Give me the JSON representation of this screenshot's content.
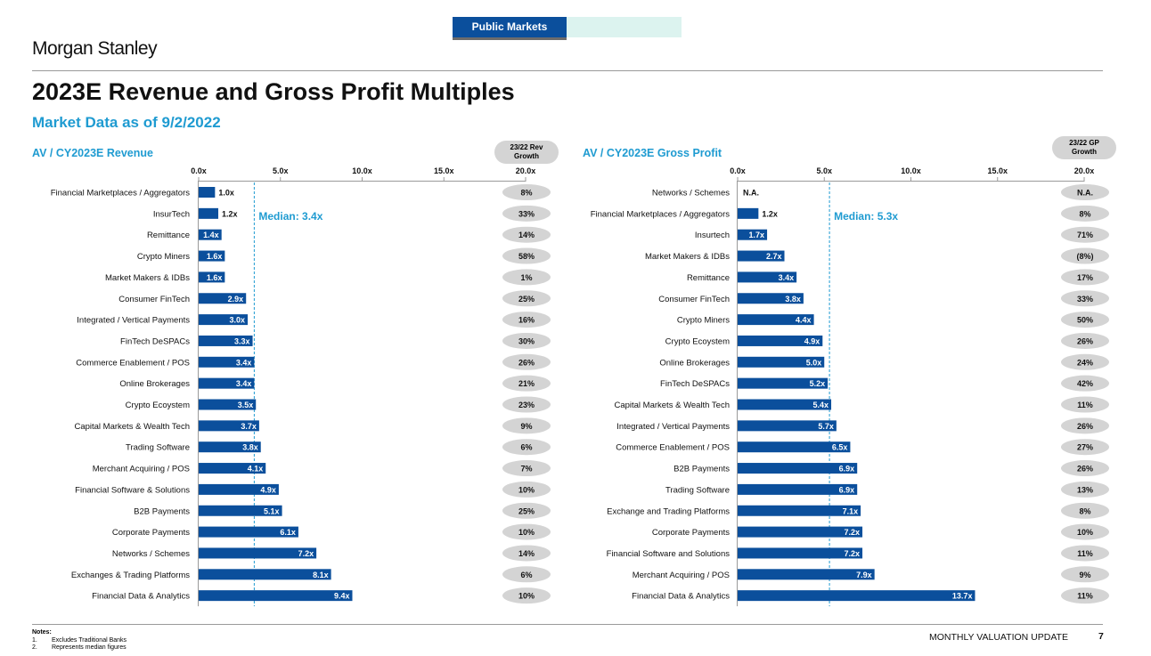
{
  "header": {
    "tab_label": "Public Markets",
    "logo": "Morgan Stanley",
    "title": "2023E Revenue and Gross Profit Multiples",
    "subtitle": "Market Data as of 9/2/2022"
  },
  "colors": {
    "bar": "#0b4f9c",
    "accent": "#1f9bd1",
    "pill": "#d4d4d4",
    "tab_inactive": "#dcf3ef"
  },
  "chart_data": [
    {
      "type": "bar",
      "orientation": "horizontal",
      "title": "AV / CY2023E Revenue",
      "growth_header": "23/22 Rev\nGrowth",
      "xlim": [
        0,
        20
      ],
      "ticks": [
        "0.0x",
        "5.0x",
        "10.0x",
        "15.0x",
        "20.0x"
      ],
      "tick_values": [
        0,
        5,
        10,
        15,
        20
      ],
      "median": 3.4,
      "median_label": "Median: 3.4x",
      "categories": [
        "Financial Marketplaces / Aggregators",
        "InsurTech",
        "Remittance",
        "Crypto Miners",
        "Market Makers & IDBs",
        "Consumer FinTech",
        "Integrated / Vertical Payments",
        "FinTech DeSPACs",
        "Commerce Enablement / POS",
        "Online Brokerages",
        "Crypto Ecoystem",
        "Capital Markets & Wealth Tech",
        "Trading Software",
        "Merchant Acquiring / POS",
        "Financial Software & Solutions",
        "B2B Payments",
        "Corporate Payments",
        "Networks / Schemes",
        "Exchanges & Trading Platforms",
        "Financial Data & Analytics"
      ],
      "values": [
        1.0,
        1.2,
        1.4,
        1.6,
        1.6,
        2.9,
        3.0,
        3.3,
        3.4,
        3.4,
        3.5,
        3.7,
        3.8,
        4.1,
        4.9,
        5.1,
        6.1,
        7.2,
        8.1,
        9.4
      ],
      "labels": [
        "1.0x",
        "1.2x",
        "1.4x",
        "1.6x",
        "1.6x",
        "2.9x",
        "3.0x",
        "3.3x",
        "3.4x",
        "3.4x",
        "3.5x",
        "3.7x",
        "3.8x",
        "4.1x",
        "4.9x",
        "5.1x",
        "6.1x",
        "7.2x",
        "8.1x",
        "9.4x"
      ],
      "growth": [
        "8%",
        "33%",
        "14%",
        "58%",
        "1%",
        "25%",
        "16%",
        "30%",
        "26%",
        "21%",
        "23%",
        "9%",
        "6%",
        "7%",
        "10%",
        "25%",
        "10%",
        "14%",
        "6%",
        "10%"
      ]
    },
    {
      "type": "bar",
      "orientation": "horizontal",
      "title": "AV / CY2023E Gross Profit",
      "growth_header": "23/22 GP\nGrowth",
      "xlim": [
        0,
        20
      ],
      "ticks": [
        "0.0x",
        "5.0x",
        "10.0x",
        "15.0x",
        "20.0x"
      ],
      "tick_values": [
        0,
        5,
        10,
        15,
        20
      ],
      "median": 5.3,
      "median_label": "Median: 5.3x",
      "categories": [
        "Networks / Schemes",
        "Financial Marketplaces / Aggregators",
        "Insurtech",
        "Market Makers & IDBs",
        "Remittance",
        "Consumer FinTech",
        "Crypto Miners",
        "Crypto Ecoystem",
        "Online Brokerages",
        "FinTech DeSPACs",
        "Capital Markets & Wealth Tech",
        "Integrated / Vertical Payments",
        "Commerce Enablement / POS",
        "B2B Payments",
        "Trading Software",
        "Exchange and Trading Platforms",
        "Corporate Payments",
        "Financial Software and Solutions",
        "Merchant Acquiring / POS",
        "Financial Data & Analytics"
      ],
      "values": [
        null,
        1.2,
        1.7,
        2.7,
        3.4,
        3.8,
        4.4,
        4.9,
        5.0,
        5.2,
        5.4,
        5.7,
        6.5,
        6.9,
        6.9,
        7.1,
        7.2,
        7.2,
        7.9,
        13.7
      ],
      "labels": [
        "N.A.",
        "1.2x",
        "1.7x",
        "2.7x",
        "3.4x",
        "3.8x",
        "4.4x",
        "4.9x",
        "5.0x",
        "5.2x",
        "5.4x",
        "5.7x",
        "6.5x",
        "6.9x",
        "6.9x",
        "7.1x",
        "7.2x",
        "7.2x",
        "7.9x",
        "13.7x"
      ],
      "growth": [
        "N.A.",
        "8%",
        "71%",
        "(8%)",
        "17%",
        "33%",
        "50%",
        "26%",
        "24%",
        "42%",
        "11%",
        "26%",
        "27%",
        "26%",
        "13%",
        "8%",
        "10%",
        "11%",
        "9%",
        "11%"
      ]
    }
  ],
  "footer": {
    "notes_title": "Notes:",
    "notes": [
      {
        "num": "1.",
        "text": "Excludes Traditional Banks"
      },
      {
        "num": "2.",
        "text": "Represents median figures"
      }
    ],
    "label": "MONTHLY VALUATION UPDATE",
    "page_number": "7"
  }
}
